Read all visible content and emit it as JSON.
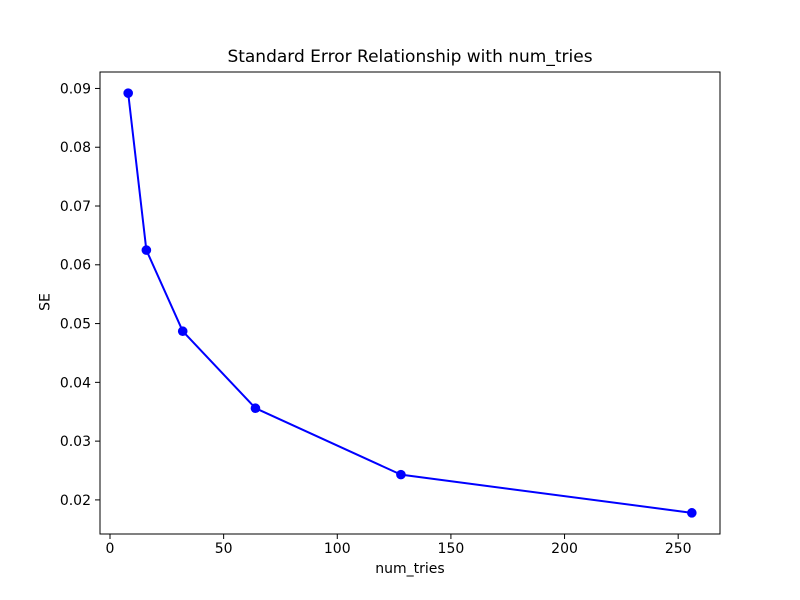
{
  "figure": {
    "background": "#ffffff",
    "frame_color": "#000000",
    "text_color": "#000000"
  },
  "chart_data": {
    "type": "line",
    "title": "Standard Error Relationship with num_tries",
    "xlabel": "num_tries",
    "ylabel": "SE",
    "x": [
      8,
      16,
      32,
      64,
      128,
      256
    ],
    "series": [
      {
        "name": "SE",
        "values": [
          0.0892,
          0.0625,
          0.0487,
          0.0356,
          0.0243,
          0.0178
        ],
        "color": "#0000ff",
        "marker": "circle",
        "line_width": 2
      }
    ],
    "xlim": [
      -4.4,
      268.4
    ],
    "ylim": [
      0.0142,
      0.0928
    ],
    "xticks": [
      0,
      50,
      100,
      150,
      200,
      250
    ],
    "xtick_labels": [
      "0",
      "50",
      "100",
      "150",
      "200",
      "250"
    ],
    "yticks": [
      0.02,
      0.03,
      0.04,
      0.05,
      0.06,
      0.07,
      0.08,
      0.09
    ],
    "ytick_labels": [
      "0.02",
      "0.03",
      "0.04",
      "0.05",
      "0.06",
      "0.07",
      "0.08",
      "0.09"
    ],
    "grid": false,
    "legend": "none"
  }
}
